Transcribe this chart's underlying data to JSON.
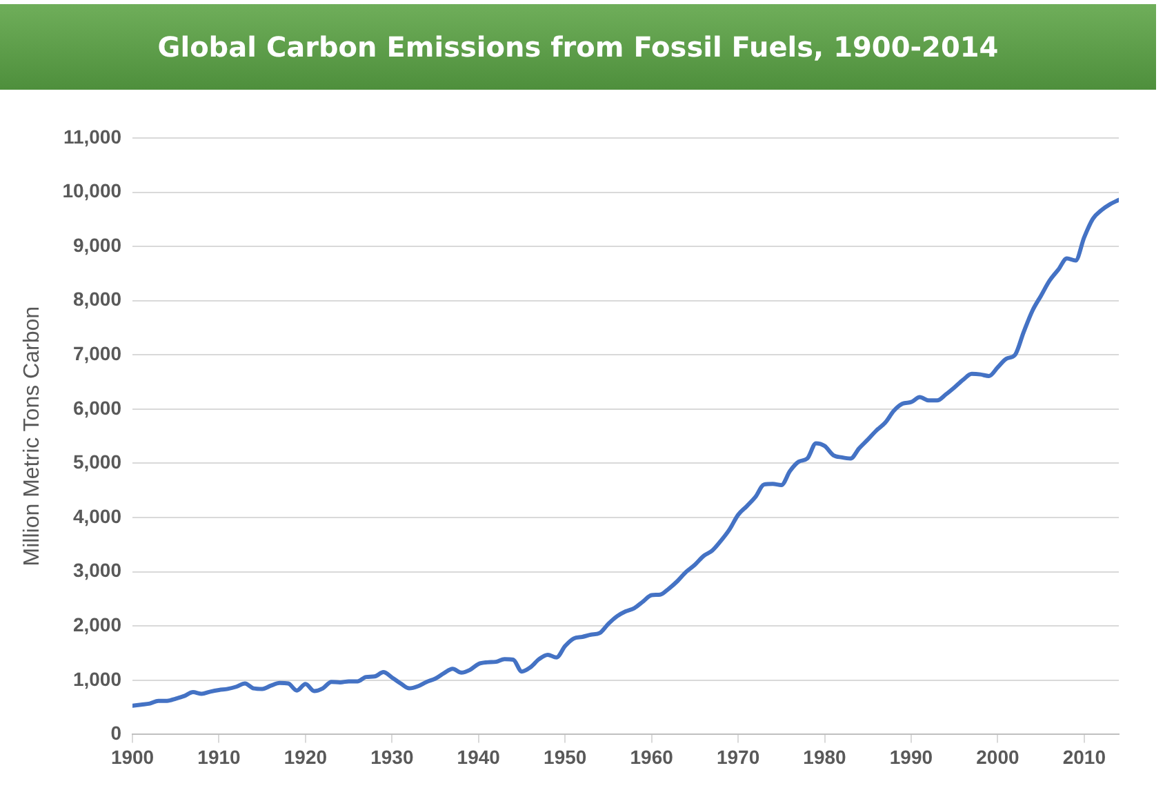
{
  "chart_data": {
    "type": "line",
    "title": "Global Carbon Emissions from Fossil Fuels, 1900-2014",
    "ylabel": "Million Metric Tons Carbon",
    "x": [
      1900,
      1901,
      1902,
      1903,
      1904,
      1905,
      1906,
      1907,
      1908,
      1909,
      1910,
      1911,
      1912,
      1913,
      1914,
      1915,
      1916,
      1917,
      1918,
      1919,
      1920,
      1921,
      1922,
      1923,
      1924,
      1925,
      1926,
      1927,
      1928,
      1929,
      1930,
      1931,
      1932,
      1933,
      1934,
      1935,
      1936,
      1937,
      1938,
      1939,
      1940,
      1941,
      1942,
      1943,
      1944,
      1945,
      1946,
      1947,
      1948,
      1949,
      1950,
      1951,
      1952,
      1953,
      1954,
      1955,
      1956,
      1957,
      1958,
      1959,
      1960,
      1961,
      1962,
      1963,
      1964,
      1965,
      1966,
      1967,
      1968,
      1969,
      1970,
      1971,
      1972,
      1973,
      1974,
      1975,
      1976,
      1977,
      1978,
      1979,
      1980,
      1981,
      1982,
      1983,
      1984,
      1985,
      1986,
      1987,
      1988,
      1989,
      1990,
      1991,
      1992,
      1993,
      1994,
      1995,
      1996,
      1997,
      1998,
      1999,
      2000,
      2001,
      2002,
      2003,
      2004,
      2005,
      2006,
      2007,
      2008,
      2009,
      2010,
      2011,
      2012,
      2013,
      2014
    ],
    "series": [
      {
        "color": "#4472c4",
        "values": [
          530,
          550,
          570,
          620,
          620,
          660,
          710,
          780,
          750,
          790,
          820,
          840,
          880,
          940,
          850,
          840,
          900,
          950,
          940,
          810,
          930,
          800,
          850,
          970,
          960,
          980,
          980,
          1060,
          1070,
          1150,
          1050,
          940,
          850,
          890,
          970,
          1030,
          1130,
          1210,
          1140,
          1190,
          1300,
          1330,
          1340,
          1390,
          1380,
          1160,
          1240,
          1390,
          1470,
          1420,
          1630,
          1770,
          1800,
          1840,
          1870,
          2040,
          2180,
          2270,
          2330,
          2450,
          2570,
          2580,
          2690,
          2830,
          3000,
          3130,
          3290,
          3390,
          3570,
          3780,
          4050,
          4210,
          4380,
          4610,
          4620,
          4600,
          4860,
          5030,
          5090,
          5370,
          5320,
          5150,
          5110,
          5090,
          5280,
          5440,
          5610,
          5750,
          5970,
          6100,
          6130,
          6220,
          6160,
          6160,
          6270,
          6400,
          6540,
          6650,
          6640,
          6610,
          6770,
          6930,
          7000,
          7420,
          7810,
          8090,
          8370,
          8570,
          8780,
          8740,
          9170,
          9510,
          9670,
          9780,
          9860
        ]
      }
    ],
    "xlim": [
      1900,
      2014
    ],
    "xticks": [
      1900,
      1910,
      1920,
      1930,
      1940,
      1950,
      1960,
      1970,
      1980,
      1990,
      2000,
      2010
    ],
    "ylim": [
      0,
      11000
    ],
    "yticks": [
      0,
      {
        "value": 1000,
        "label": "1,000"
      },
      {
        "value": 2000,
        "label": "2,000"
      },
      {
        "value": 3000,
        "label": "3,000"
      },
      {
        "value": 4000,
        "label": "4,000"
      },
      {
        "value": 5000,
        "label": "5,000"
      },
      {
        "value": 6000,
        "label": "6,000"
      },
      {
        "value": 7000,
        "label": "7,000"
      },
      {
        "value": 8000,
        "label": "8,000"
      },
      {
        "value": 9000,
        "label": "9,000"
      },
      {
        "value": 10000,
        "label": "10,000"
      },
      {
        "value": 11000,
        "label": "11,000"
      }
    ],
    "grid": "y",
    "legend": false,
    "marker": "none",
    "line_style": "solid"
  }
}
